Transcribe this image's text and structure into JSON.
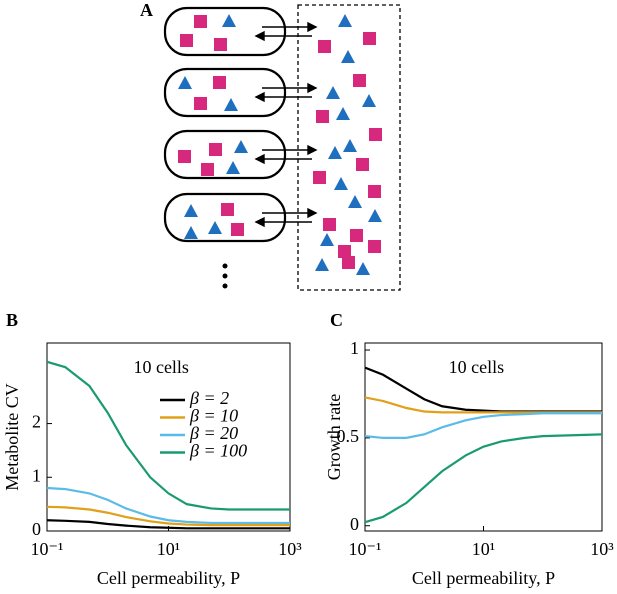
{
  "panels": [
    "A",
    "B",
    "C"
  ],
  "chart_data": [
    {
      "type": "line",
      "annotation": "10 cells",
      "xlabel": "Cell permeability, P",
      "ylabel": "Metabolite CV",
      "xscale": "log",
      "xlim": [
        0.1,
        1000
      ],
      "xticks": [
        {
          "value": 0.1,
          "label": "10⁻¹"
        },
        {
          "value": 10,
          "label": "10¹"
        },
        {
          "value": 1000,
          "label": "10³"
        }
      ],
      "ylim": [
        0,
        3.5
      ],
      "yticks": [
        0,
        1,
        2
      ],
      "legend": "upper right",
      "x": [
        0.1,
        0.2,
        0.5,
        1,
        2,
        5,
        10,
        20,
        50,
        100,
        1000
      ],
      "series": [
        {
          "name": "β = 2",
          "color": "#000000",
          "values": [
            0.2,
            0.19,
            0.17,
            0.13,
            0.1,
            0.07,
            0.06,
            0.05,
            0.05,
            0.05,
            0.05
          ]
        },
        {
          "name": "β = 10",
          "color": "#e1a019",
          "values": [
            0.45,
            0.44,
            0.4,
            0.34,
            0.26,
            0.18,
            0.14,
            0.12,
            0.11,
            0.11,
            0.11
          ]
        },
        {
          "name": "β = 20",
          "color": "#5bbbe8",
          "values": [
            0.8,
            0.78,
            0.7,
            0.58,
            0.42,
            0.27,
            0.2,
            0.17,
            0.15,
            0.15,
            0.15
          ]
        },
        {
          "name": "β = 100",
          "color": "#1a9a72",
          "values": [
            3.15,
            3.05,
            2.7,
            2.2,
            1.6,
            1.0,
            0.7,
            0.5,
            0.42,
            0.4,
            0.4
          ]
        }
      ]
    },
    {
      "type": "line",
      "annotation": "10 cells",
      "xlabel": "Cell permeability, P",
      "ylabel": "Growth rate",
      "xscale": "log",
      "xlim": [
        0.1,
        1000
      ],
      "xticks": [
        {
          "value": 0.1,
          "label": "10⁻¹"
        },
        {
          "value": 10,
          "label": "10¹"
        },
        {
          "value": 1000,
          "label": "10³"
        }
      ],
      "ylim": [
        -0.03,
        1.04
      ],
      "yticks": [
        0,
        0.5,
        1
      ],
      "x": [
        0.1,
        0.2,
        0.5,
        1,
        2,
        5,
        10,
        20,
        50,
        100,
        1000
      ],
      "series": [
        {
          "color": "#000000",
          "values": [
            0.9,
            0.86,
            0.78,
            0.72,
            0.68,
            0.66,
            0.655,
            0.65,
            0.65,
            0.65,
            0.65
          ]
        },
        {
          "color": "#e1a019",
          "values": [
            0.73,
            0.71,
            0.67,
            0.65,
            0.645,
            0.645,
            0.645,
            0.645,
            0.645,
            0.645,
            0.645
          ]
        },
        {
          "color": "#5bbbe8",
          "values": [
            0.51,
            0.5,
            0.5,
            0.52,
            0.56,
            0.6,
            0.62,
            0.63,
            0.635,
            0.64,
            0.64
          ]
        },
        {
          "color": "#1a9a72",
          "values": [
            0.02,
            0.05,
            0.13,
            0.22,
            0.31,
            0.4,
            0.45,
            0.48,
            0.5,
            0.51,
            0.52
          ]
        }
      ]
    }
  ]
}
